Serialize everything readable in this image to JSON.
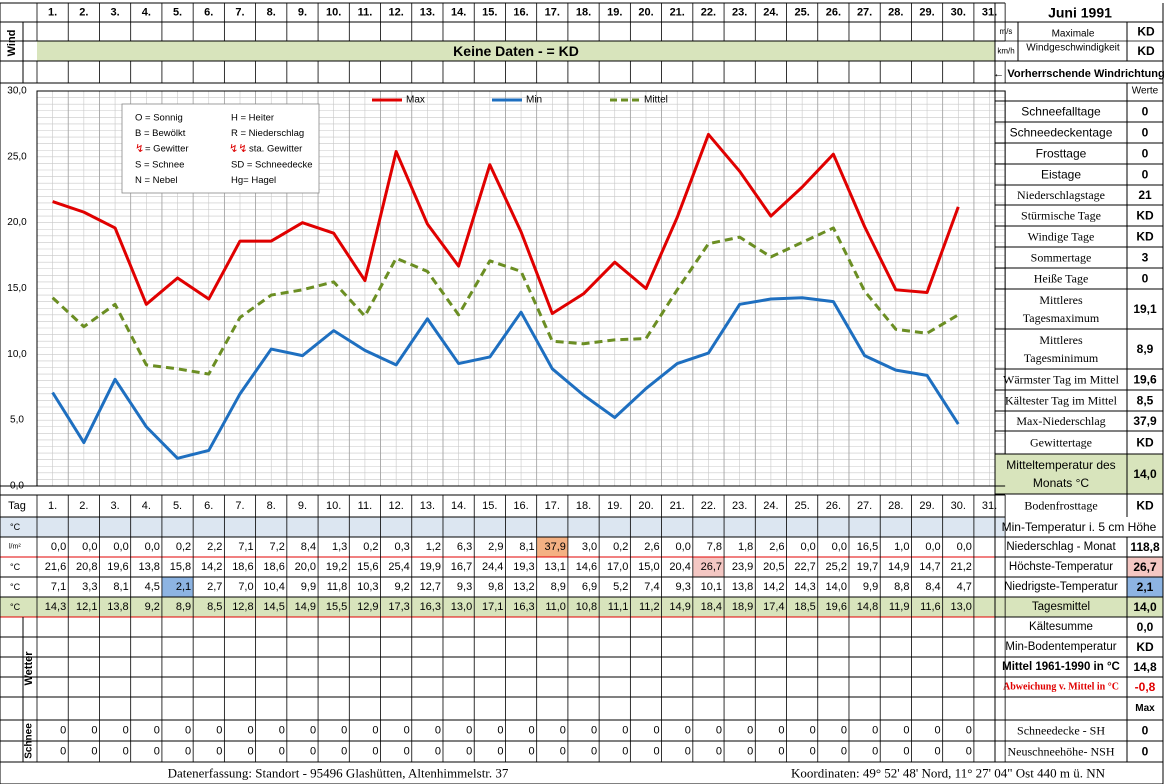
{
  "header": {
    "month_title": "Juni 1991",
    "days": [
      "1.",
      "2.",
      "3.",
      "4.",
      "5.",
      "6.",
      "7.",
      "8.",
      "9.",
      "10.",
      "11.",
      "12.",
      "13.",
      "14.",
      "15.",
      "16.",
      "17.",
      "18.",
      "19.",
      "20.",
      "21.",
      "22.",
      "23.",
      "24.",
      "25.",
      "26.",
      "27.",
      "28.",
      "29.",
      "30.",
      "31."
    ],
    "wind_label": "Wind",
    "unit_ms": "m/s",
    "unit_kmh": "km/h",
    "max_wind_label": "Maximale\nWindgeschwindigkeit",
    "max_wind_ms": "KD",
    "max_wind_kmh": "KD",
    "no_data_banner": "Keine Daten -  = KD",
    "wind_direction_label": "← Vorherrschende Windrichtung",
    "werte_label": "Werte",
    "tag_label": "Tag"
  },
  "chart_data": {
    "type": "line",
    "x": [
      1,
      2,
      3,
      4,
      5,
      6,
      7,
      8,
      9,
      10,
      11,
      12,
      13,
      14,
      15,
      16,
      17,
      18,
      19,
      20,
      21,
      22,
      23,
      24,
      25,
      26,
      27,
      28,
      29,
      30
    ],
    "ylim": [
      0,
      30
    ],
    "yticks": [
      "0,0",
      "5,0",
      "10,0",
      "15,0",
      "20,0",
      "25,0",
      "30,0"
    ],
    "grid": true,
    "legend_position": "top",
    "series": [
      {
        "name": "Max",
        "color": "#e00000",
        "style": "solid",
        "values": [
          21.6,
          20.8,
          19.6,
          13.8,
          15.8,
          14.2,
          18.6,
          18.6,
          20.0,
          19.2,
          15.6,
          25.4,
          19.9,
          16.7,
          24.4,
          19.3,
          13.1,
          14.6,
          17.0,
          15.0,
          20.4,
          26.7,
          23.9,
          20.5,
          22.7,
          25.2,
          19.7,
          14.9,
          14.7,
          21.2
        ]
      },
      {
        "name": "Min",
        "color": "#1e6fc0",
        "style": "solid",
        "values": [
          7.1,
          3.3,
          8.1,
          4.5,
          2.1,
          2.7,
          7.0,
          10.4,
          9.9,
          11.8,
          10.3,
          9.2,
          12.7,
          9.3,
          9.8,
          13.2,
          8.9,
          6.9,
          5.2,
          7.4,
          9.3,
          10.1,
          13.8,
          14.2,
          14.3,
          14.0,
          9.9,
          8.8,
          8.4,
          4.7
        ]
      },
      {
        "name": "Mittel",
        "color": "#6b8e23",
        "style": "dashed",
        "values": [
          14.3,
          12.1,
          13.8,
          9.2,
          8.9,
          8.5,
          12.8,
          14.5,
          14.9,
          15.5,
          12.9,
          17.3,
          16.3,
          13.0,
          17.1,
          16.3,
          11.0,
          10.8,
          11.1,
          11.2,
          14.9,
          18.4,
          18.9,
          17.4,
          18.5,
          19.6,
          14.8,
          11.9,
          11.6,
          13.0
        ]
      }
    ]
  },
  "weather_legend": [
    [
      "O = Sonnig",
      "H = Heiter"
    ],
    [
      "B = Bewölkt",
      "R = Niederschlag"
    ],
    [
      "= Gewitter",
      "sta. Gewitter"
    ],
    [
      "S = Schnee",
      "SD = Schneedecke"
    ],
    [
      "N = Nebel",
      "Hg= Hagel"
    ]
  ],
  "rows": {
    "unit_c": "°C",
    "unit_lm2": "l/m²",
    "precip": [
      "0,0",
      "0,0",
      "0,0",
      "0,0",
      "0,2",
      "2,2",
      "7,1",
      "7,2",
      "8,4",
      "1,3",
      "0,2",
      "0,3",
      "1,2",
      "6,3",
      "2,9",
      "8,1",
      "37,9",
      "3,0",
      "0,2",
      "2,6",
      "0,0",
      "7,8",
      "1,8",
      "2,6",
      "0,0",
      "0,0",
      "16,5",
      "1,0",
      "0,0",
      "0,0",
      ""
    ],
    "max": [
      "21,6",
      "20,8",
      "19,6",
      "13,8",
      "15,8",
      "14,2",
      "18,6",
      "18,6",
      "20,0",
      "19,2",
      "15,6",
      "25,4",
      "19,9",
      "16,7",
      "24,4",
      "19,3",
      "13,1",
      "14,6",
      "17,0",
      "15,0",
      "20,4",
      "26,7",
      "23,9",
      "20,5",
      "22,7",
      "25,2",
      "19,7",
      "14,9",
      "14,7",
      "21,2",
      ""
    ],
    "min": [
      "7,1",
      "3,3",
      "8,1",
      "4,5",
      "2,1",
      "2,7",
      "7,0",
      "10,4",
      "9,9",
      "11,8",
      "10,3",
      "9,2",
      "12,7",
      "9,3",
      "9,8",
      "13,2",
      "8,9",
      "6,9",
      "5,2",
      "7,4",
      "9,3",
      "10,1",
      "13,8",
      "14,2",
      "14,3",
      "14,0",
      "9,9",
      "8,8",
      "8,4",
      "4,7",
      ""
    ],
    "mean": [
      "14,3",
      "12,1",
      "13,8",
      "9,2",
      "8,9",
      "8,5",
      "12,8",
      "14,5",
      "14,9",
      "15,5",
      "12,9",
      "17,3",
      "16,3",
      "13,0",
      "17,1",
      "16,3",
      "11,0",
      "10,8",
      "11,1",
      "11,2",
      "14,9",
      "18,4",
      "18,9",
      "17,4",
      "18,5",
      "19,6",
      "14,8",
      "11,9",
      "11,6",
      "13,0",
      ""
    ],
    "wetter_label": "Wetter",
    "schnee_label": "Schnee",
    "snow1": [
      "0",
      "0",
      "0",
      "0",
      "0",
      "0",
      "0",
      "0",
      "0",
      "0",
      "0",
      "0",
      "0",
      "0",
      "0",
      "0",
      "0",
      "0",
      "0",
      "0",
      "0",
      "0",
      "0",
      "0",
      "0",
      "0",
      "0",
      "0",
      "0",
      "0",
      ""
    ],
    "snow2": [
      "0",
      "0",
      "0",
      "0",
      "0",
      "0",
      "0",
      "0",
      "0",
      "0",
      "0",
      "0",
      "0",
      "0",
      "0",
      "0",
      "0",
      "0",
      "0",
      "0",
      "0",
      "0",
      "0",
      "0",
      "0",
      "0",
      "0",
      "0",
      "0",
      "0",
      ""
    ]
  },
  "highlights": {
    "precip_max_color": "#f4b183",
    "max_max_color": "#f4c7c3",
    "min_min_color": "#8db4e2",
    "mean_row_color": "#d8e4bc",
    "banner_color": "#d8e4bc",
    "soil_row_color": "#dce6f1"
  },
  "stats_top": [
    {
      "label": "Schneefalltage",
      "value": "0"
    },
    {
      "label": "Schneedeckentage",
      "value": "0"
    },
    {
      "label": "Frosttage",
      "value": "0"
    },
    {
      "label": "Eistage",
      "value": "0"
    },
    {
      "label": "Niederschlagstage",
      "value": "21"
    },
    {
      "label": "Stürmische Tage",
      "value": "KD"
    },
    {
      "label": "Windige Tage",
      "value": "KD"
    },
    {
      "label": "Sommertage",
      "value": "3"
    },
    {
      "label": "Heiße Tage",
      "value": "0"
    },
    {
      "label": "Mittleres\nTagesmaximum",
      "value": "19,1"
    },
    {
      "label": "Mittleres\nTagesminimum",
      "value": "8,9"
    },
    {
      "label": "Wärmster Tag im Mittel",
      "value": "19,6"
    },
    {
      "label": "Kältester Tag im Mittel",
      "value": "8,5"
    },
    {
      "label": "Max-Niederschlag",
      "value": "37,9"
    },
    {
      "label": "Gewittertage",
      "value": "KD"
    },
    {
      "label": "Mitteltemperatur des\nMonats °C",
      "value": "14,0"
    },
    {
      "label": "Bodenfrosttage",
      "value": "KD"
    }
  ],
  "stats_bottom": {
    "soil_label": "Min-Temperatur i. 5 cm Höhe",
    "items": [
      {
        "label": "Niederschlag - Monat",
        "value": "118,8"
      },
      {
        "label": "Höchste-Temperatur",
        "value": "26,7"
      },
      {
        "label": "Niedrigste-Temperatur",
        "value": "2,1"
      },
      {
        "label": "Tagesmittel",
        "value": "14,0"
      },
      {
        "label": "Kältesumme",
        "value": "0,0"
      },
      {
        "label": "Min-Bodentemperatur",
        "value": "KD"
      },
      {
        "label": "Mittel 1961-1990 in °C",
        "value": "14,8"
      },
      {
        "label": "Abweichung v. Mittel in °C",
        "value": "-0,8"
      }
    ],
    "max_label": "Max",
    "snow_items": [
      {
        "label": "Schneedecke -  SH",
        "value": "0"
      },
      {
        "label": "Neuschneehöhe- NSH",
        "value": "0"
      }
    ]
  },
  "footer": {
    "left": "Datenerfassung:  Standort -  95496  Glashütten, Altenhimmelstr. 37",
    "right": "Koordinaten:  49° 52' 48' Nord,  11° 27' 04\" Ost   440 m ü. NN"
  }
}
